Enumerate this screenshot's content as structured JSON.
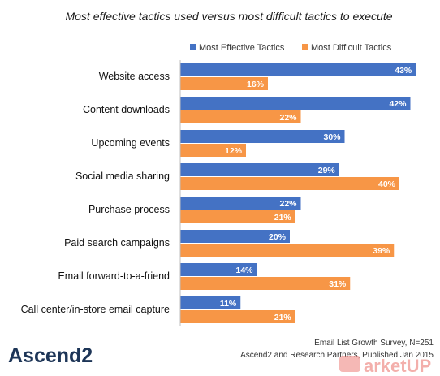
{
  "chart_data": {
    "type": "bar",
    "orientation": "horizontal",
    "title": "Most effective tactics used versus most difficult tactics to execute",
    "categories": [
      "Website access",
      "Content downloads",
      "Upcoming events",
      "Social media sharing",
      "Purchase process",
      "Paid search campaigns",
      "Email forward-to-a-friend",
      "Call center/in-store email capture"
    ],
    "series": [
      {
        "name": "Most Effective Tactics",
        "color": "#4472c4",
        "values": [
          43,
          42,
          30,
          29,
          22,
          20,
          14,
          11
        ]
      },
      {
        "name": "Most Difficult Tactics",
        "color": "#f79646",
        "values": [
          16,
          22,
          12,
          40,
          21,
          39,
          31,
          21
        ]
      }
    ],
    "value_suffix": "%",
    "xlim": [
      0,
      45
    ],
    "grid": false,
    "legend_position": "top-right"
  },
  "source": {
    "line1": "Email List Growth Survey, N=251",
    "line2": "Ascend2 and Research Partners, Published Jan 2015"
  },
  "logo": {
    "text": "Ascend2"
  },
  "watermark": {
    "text": "arketUP"
  }
}
